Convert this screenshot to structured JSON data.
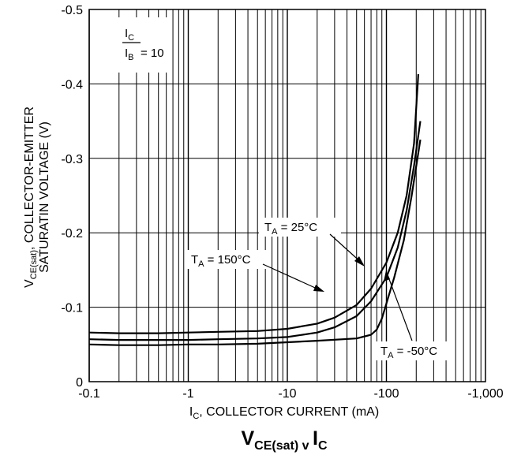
{
  "chart_data": {
    "type": "line",
    "title_main": "V",
    "title_sub": "CE(sat)",
    "title_mid": " v ",
    "title_main2": "I",
    "title_sub2": "C",
    "xlabel_pre": "I",
    "xlabel_sub": "C",
    "xlabel_post": ", COLLECTOR CURRENT (mA)",
    "ylabel_line1_pre": "V",
    "ylabel_line1_sub": "CE(sat)",
    "ylabel_line1_post": ", COLLECTOR-EMITTER",
    "ylabel_line2": "SATURATIN VOLTAGE (V)",
    "x_scale": "log",
    "xlim": [
      0.1,
      1000
    ],
    "ylim": [
      0,
      0.5
    ],
    "grid": true,
    "x_ticks": [
      {
        "value": 0.1,
        "label": "-0.1"
      },
      {
        "value": 1,
        "label": "-1"
      },
      {
        "value": 10,
        "label": "-10"
      },
      {
        "value": 100,
        "label": "-100"
      },
      {
        "value": 1000,
        "label": "-1,000"
      }
    ],
    "y_ticks": [
      {
        "value": 0,
        "label": "0"
      },
      {
        "value": 0.1,
        "label": "-0.1"
      },
      {
        "value": 0.2,
        "label": "-0.2"
      },
      {
        "value": 0.3,
        "label": "-0.3"
      },
      {
        "value": 0.4,
        "label": "-0.4"
      },
      {
        "value": 0.5,
        "label": "-0.5"
      }
    ],
    "condition": {
      "num_main": "I",
      "num_sub": "C",
      "den_main": "I",
      "den_sub": "B",
      "value": "= 10"
    },
    "series": [
      {
        "name_pre": "T",
        "name_sub": "A",
        "name_post": " = 150°C",
        "points": [
          [
            0.1,
            0.066
          ],
          [
            0.2,
            0.065
          ],
          [
            0.5,
            0.065
          ],
          [
            1,
            0.066
          ],
          [
            2,
            0.067
          ],
          [
            5,
            0.068
          ],
          [
            10,
            0.071
          ],
          [
            20,
            0.078
          ],
          [
            30,
            0.086
          ],
          [
            50,
            0.103
          ],
          [
            70,
            0.125
          ],
          [
            100,
            0.16
          ],
          [
            130,
            0.2
          ],
          [
            160,
            0.25
          ],
          [
            190,
            0.32
          ],
          [
            210,
            0.413
          ]
        ]
      },
      {
        "name_pre": "T",
        "name_sub": "A",
        "name_post": " = 25°C",
        "points": [
          [
            0.1,
            0.057
          ],
          [
            0.2,
            0.056
          ],
          [
            0.5,
            0.056
          ],
          [
            1,
            0.056
          ],
          [
            2,
            0.057
          ],
          [
            5,
            0.058
          ],
          [
            10,
            0.06
          ],
          [
            20,
            0.066
          ],
          [
            30,
            0.073
          ],
          [
            50,
            0.088
          ],
          [
            70,
            0.108
          ],
          [
            100,
            0.14
          ],
          [
            130,
            0.18
          ],
          [
            160,
            0.23
          ],
          [
            190,
            0.29
          ],
          [
            220,
            0.35
          ]
        ]
      },
      {
        "name_pre": "T",
        "name_sub": "A",
        "name_post": " = -50°C",
        "points": [
          [
            0.1,
            0.05
          ],
          [
            0.2,
            0.049
          ],
          [
            0.5,
            0.049
          ],
          [
            1,
            0.05
          ],
          [
            2,
            0.05
          ],
          [
            5,
            0.051
          ],
          [
            10,
            0.053
          ],
          [
            20,
            0.055
          ],
          [
            50,
            0.058
          ],
          [
            70,
            0.063
          ],
          [
            80,
            0.07
          ],
          [
            90,
            0.085
          ],
          [
            100,
            0.105
          ],
          [
            120,
            0.14
          ],
          [
            150,
            0.19
          ],
          [
            180,
            0.25
          ],
          [
            220,
            0.325
          ]
        ]
      }
    ]
  }
}
